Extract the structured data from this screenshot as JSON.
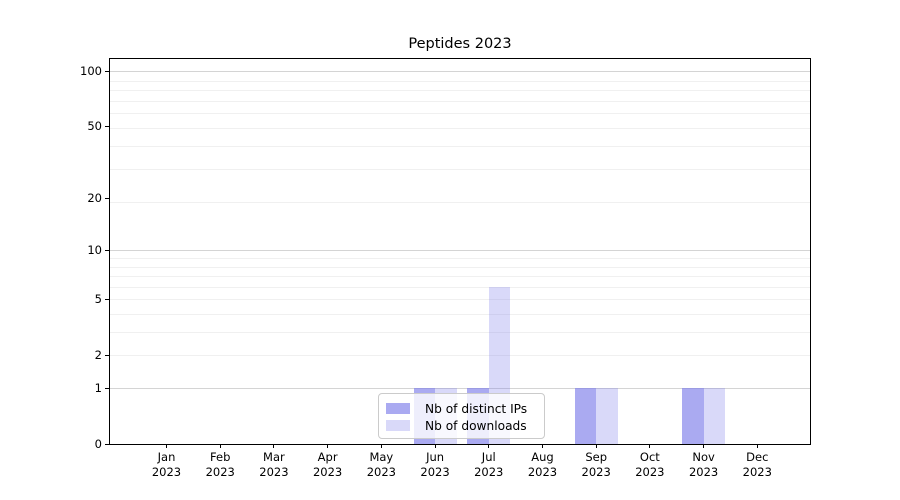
{
  "chart_data": {
    "type": "bar",
    "title": "Peptides 2023",
    "categories": [
      "Jan 2023",
      "Feb 2023",
      "Mar 2023",
      "Apr 2023",
      "May 2023",
      "Jun 2023",
      "Jul 2023",
      "Aug 2023",
      "Sep 2023",
      "Oct 2023",
      "Nov 2023",
      "Dec 2023"
    ],
    "months": [
      "Jan",
      "Feb",
      "Mar",
      "Apr",
      "May",
      "Jun",
      "Jul",
      "Aug",
      "Sep",
      "Oct",
      "Nov",
      "Dec"
    ],
    "year_label": "2023",
    "series": [
      {
        "key": "distinct-ips",
        "name": "Nb of distinct IPs",
        "color": "#7d7de9",
        "alpha": 0.65,
        "values": [
          0,
          0,
          0,
          0,
          0,
          1,
          1,
          0,
          1,
          0,
          1,
          0
        ]
      },
      {
        "key": "downloads",
        "name": "Nb of downloads",
        "color": "#7d7de9",
        "alpha": 0.29,
        "values": [
          0,
          0,
          0,
          0,
          0,
          1,
          6,
          0,
          1,
          0,
          1,
          0
        ]
      }
    ],
    "yticks": [
      0,
      1,
      2,
      5,
      10,
      20,
      50,
      100
    ],
    "y_scale": "log10(1+v)",
    "ylim": [
      0,
      115
    ],
    "grid": "horizontal-only",
    "legend_position": "inside-lower-center",
    "colors": {
      "axis": "#000000",
      "grid_major": "#d4d4d4",
      "grid_minor": "#f0f0f0",
      "legend_border": "#cbcbcb"
    }
  }
}
